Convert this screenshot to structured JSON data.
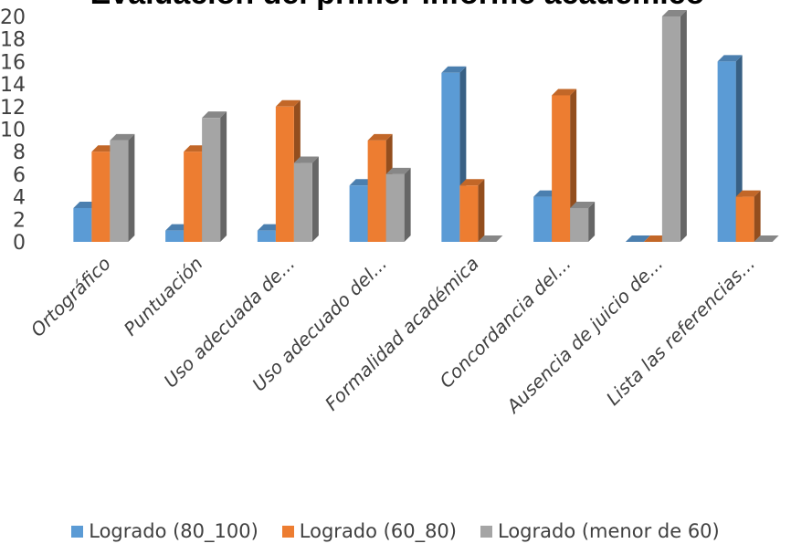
{
  "chart_data": {
    "type": "bar",
    "title": "Evaluación del primer informe académico",
    "categories": [
      "Ortográfico",
      "Puntuación",
      "Uso adecuada de...",
      "Uso adecuado del...",
      "Formalidad académica",
      "Concordancia del...",
      "Ausencia de juicio de...",
      "Lista las referencias..."
    ],
    "series": [
      {
        "name": "Logrado (80_100)",
        "color": "#5b9bd5",
        "values": [
          3,
          1,
          1,
          5,
          15,
          4,
          0,
          16
        ]
      },
      {
        "name": "Logrado  (60_80)",
        "color": "#ed7d31",
        "values": [
          8,
          8,
          12,
          9,
          5,
          13,
          0,
          4
        ]
      },
      {
        "name": "Logrado  (menor de 60)",
        "color": "#a5a5a5",
        "values": [
          9,
          11,
          7,
          6,
          0,
          3,
          20,
          0
        ]
      }
    ],
    "ylim": [
      0,
      20
    ],
    "yticks": [
      0,
      2,
      4,
      6,
      8,
      10,
      12,
      14,
      16,
      18,
      20
    ],
    "grid": false,
    "legend_position": "bottom"
  }
}
